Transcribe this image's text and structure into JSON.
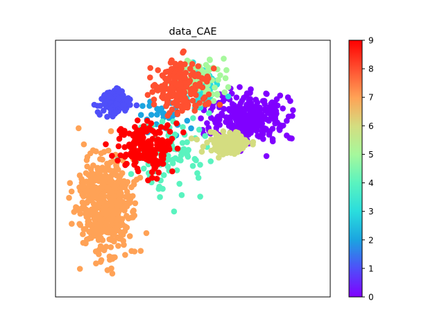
{
  "chart_data": {
    "type": "scatter",
    "title": "data_CAE",
    "xlabel": "",
    "ylabel": "",
    "axes_ticks_shown": false,
    "grid": false,
    "colormap": "rainbow",
    "colorbar": {
      "min": 0,
      "max": 9,
      "ticks": [
        0,
        1,
        2,
        3,
        4,
        5,
        6,
        7,
        8,
        9
      ],
      "tick_labels": [
        "0",
        "1",
        "2",
        "3",
        "4",
        "5",
        "6",
        "7",
        "8",
        "9"
      ]
    },
    "xlim": [
      0,
      100
    ],
    "ylim": [
      0,
      100
    ],
    "clusters": [
      {
        "label": 0,
        "color": "#8000ff",
        "cx": 70,
        "cy": 70,
        "sx": 10,
        "sy": 7,
        "n": 320
      },
      {
        "label": 1,
        "color": "#4f4ff9",
        "cx": 22,
        "cy": 76,
        "sx": 4,
        "sy": 4,
        "n": 110
      },
      {
        "label": 2,
        "color": "#1ba4e0",
        "cx": 40,
        "cy": 70,
        "sx": 6,
        "sy": 5,
        "n": 30
      },
      {
        "label": 3,
        "color": "#2adddd",
        "cx": 52,
        "cy": 82,
        "sx": 6,
        "sy": 5,
        "n": 90
      },
      {
        "label": 4,
        "color": "#5af3bf",
        "cx": 42,
        "cy": 55,
        "sx": 10,
        "sy": 10,
        "n": 90
      },
      {
        "label": 5,
        "color": "#a6f89c",
        "cx": 52,
        "cy": 85,
        "sx": 8,
        "sy": 6,
        "n": 70
      },
      {
        "label": 6,
        "color": "#d4dd80",
        "cx": 62,
        "cy": 60,
        "sx": 6,
        "sy": 3,
        "n": 130
      },
      {
        "label": 7,
        "color": "#ffa256",
        "cx": 18,
        "cy": 35,
        "sx": 7,
        "sy": 14,
        "n": 480
      },
      {
        "label": 8,
        "color": "#ff5030",
        "cx": 45,
        "cy": 82,
        "sx": 7,
        "sy": 7,
        "n": 190
      },
      {
        "label": 9,
        "color": "#ff0000",
        "cx": 33,
        "cy": 58,
        "sx": 7,
        "sy": 7,
        "n": 200
      }
    ]
  }
}
